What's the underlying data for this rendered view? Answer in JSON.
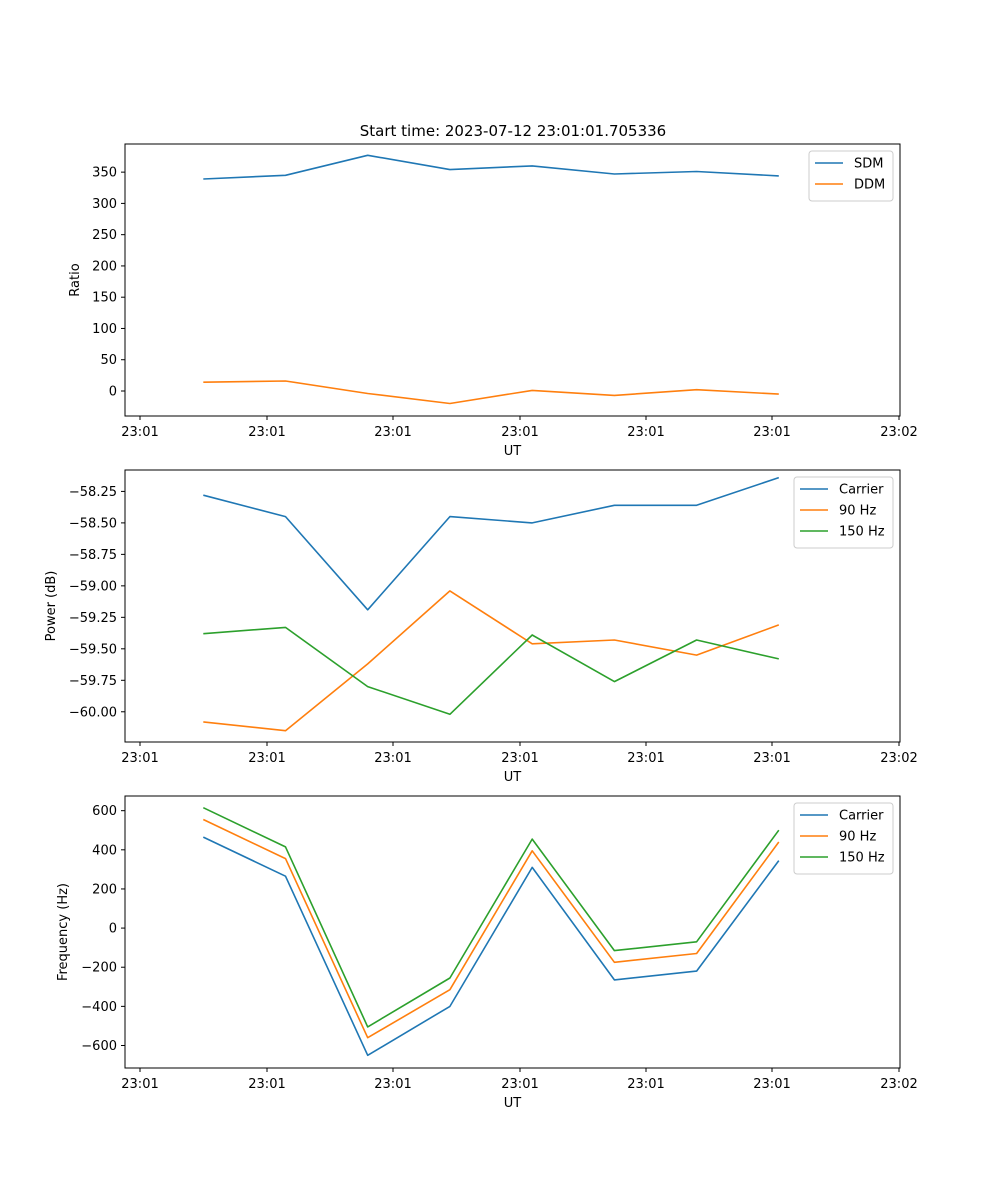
{
  "figure": {
    "title": "Start time: 2023-07-12 23:01:01.705336"
  },
  "colors": {
    "c0": "#1f77b4",
    "c1": "#ff7f0e",
    "c2": "#2ca02c",
    "axis": "#000000",
    "legend_edge": "#cccccc"
  },
  "chart_data": [
    {
      "type": "line",
      "title": "Start time: 2023-07-12 23:01:01.705336",
      "xlabel": "UT",
      "ylabel": "Ratio",
      "x_tick_labels": [
        "23:01",
        "23:01",
        "23:01",
        "23:01",
        "23:01",
        "23:01",
        "23:02"
      ],
      "xlim": [
        0,
        6
      ],
      "x": [
        0.5,
        1.15,
        1.8,
        2.45,
        3.1,
        3.75,
        4.4,
        5.05
      ],
      "ylim": [
        -40,
        395
      ],
      "y_ticks": [
        0,
        50,
        100,
        150,
        200,
        250,
        300,
        350
      ],
      "legend": "top-right",
      "series": [
        {
          "name": "SDM",
          "color": "c0",
          "values": [
            339,
            345,
            377,
            354,
            360,
            347,
            351,
            344
          ]
        },
        {
          "name": "DDM",
          "color": "c1",
          "values": [
            14,
            16,
            -4,
            -20,
            1,
            -7,
            2,
            -5
          ]
        }
      ]
    },
    {
      "type": "line",
      "title": "",
      "xlabel": "UT",
      "ylabel": "Power (dB)",
      "x_tick_labels": [
        "23:01",
        "23:01",
        "23:01",
        "23:01",
        "23:01",
        "23:01",
        "23:02"
      ],
      "xlim": [
        0,
        6
      ],
      "x": [
        0.5,
        1.15,
        1.8,
        2.45,
        3.1,
        3.75,
        4.4,
        5.05
      ],
      "ylim": [
        -60.24,
        -58.08
      ],
      "y_ticks": [
        -60.0,
        -59.75,
        -59.5,
        -59.25,
        -59.0,
        -58.75,
        -58.5,
        -58.25
      ],
      "y_tick_labels": [
        "−60.00",
        "−59.75",
        "−59.50",
        "−59.25",
        "−59.00",
        "−58.75",
        "−58.50",
        "−58.25"
      ],
      "legend": "top-right",
      "series": [
        {
          "name": "Carrier",
          "color": "c0",
          "values": [
            -58.28,
            -58.45,
            -59.19,
            -58.45,
            -58.5,
            -58.36,
            -58.36,
            -58.14
          ]
        },
        {
          "name": "90 Hz",
          "color": "c1",
          "values": [
            -60.08,
            -60.15,
            -59.62,
            -59.04,
            -59.46,
            -59.43,
            -59.55,
            -59.31
          ]
        },
        {
          "name": "150 Hz",
          "color": "c2",
          "values": [
            -59.38,
            -59.33,
            -59.8,
            -60.02,
            -59.39,
            -59.76,
            -59.43,
            -59.58
          ]
        }
      ]
    },
    {
      "type": "line",
      "title": "",
      "xlabel": "UT",
      "ylabel": "Frequency (Hz)",
      "x_tick_labels": [
        "23:01",
        "23:01",
        "23:01",
        "23:01",
        "23:01",
        "23:01",
        "23:02"
      ],
      "xlim": [
        0,
        6
      ],
      "x": [
        0.5,
        1.15,
        1.8,
        2.45,
        3.1,
        3.75,
        4.4,
        5.05
      ],
      "ylim": [
        -715,
        675
      ],
      "y_ticks": [
        -600,
        -400,
        -200,
        0,
        200,
        400,
        600
      ],
      "y_tick_labels": [
        "−600",
        "−400",
        "−200",
        "0",
        "200",
        "400",
        "600"
      ],
      "legend": "top-right",
      "series": [
        {
          "name": "Carrier",
          "color": "c0",
          "values": [
            465,
            265,
            -650,
            -400,
            310,
            -265,
            -220,
            345
          ]
        },
        {
          "name": "90 Hz",
          "color": "c1",
          "values": [
            555,
            355,
            -560,
            -315,
            395,
            -175,
            -130,
            440
          ]
        },
        {
          "name": "150 Hz",
          "color": "c2",
          "values": [
            615,
            415,
            -505,
            -255,
            455,
            -115,
            -70,
            500
          ]
        }
      ]
    }
  ]
}
